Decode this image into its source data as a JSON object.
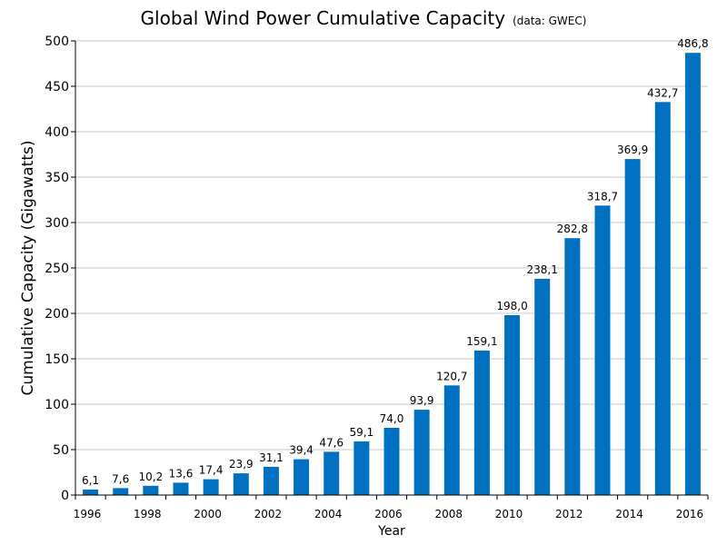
{
  "chart_data": {
    "type": "bar",
    "title": "Global Wind Power Cumulative Capacity",
    "subtitle": "(data: GWEC)",
    "xlabel": "Year",
    "ylabel": "Cumulative Capacity (Gigawatts)",
    "categories": [
      "1996",
      "1997",
      "1998",
      "1999",
      "2000",
      "2001",
      "2002",
      "2003",
      "2004",
      "2005",
      "2006",
      "2007",
      "2008",
      "2009",
      "2010",
      "2011",
      "2012",
      "2013",
      "2014",
      "2015",
      "2016"
    ],
    "values": [
      6.1,
      7.6,
      10.2,
      13.6,
      17.4,
      23.9,
      31.1,
      39.4,
      47.6,
      59.1,
      74.0,
      93.9,
      120.7,
      159.1,
      198.0,
      238.1,
      282.8,
      318.7,
      369.9,
      432.7,
      486.8
    ],
    "data_labels": [
      "6,1",
      "7,6",
      "10,2",
      "13,6",
      "17,4",
      "23,9",
      "31,1",
      "39,4",
      "47,6",
      "59,1",
      "74,0",
      "93,9",
      "120,7",
      "159,1",
      "198,0",
      "238,1",
      "282,8",
      "318,7",
      "369,9",
      "432,7",
      "486,8"
    ],
    "ylim": [
      0,
      500
    ],
    "yticks": [
      0,
      50,
      100,
      150,
      200,
      250,
      300,
      350,
      400,
      450,
      500
    ],
    "xtick_labels": [
      "1996",
      "1998",
      "2000",
      "2002",
      "2004",
      "2006",
      "2008",
      "2010",
      "2012",
      "2014",
      "2016"
    ],
    "bar_color": "#0070c0",
    "grid_color": "#c8c8c8",
    "grid": true,
    "legend": "none"
  }
}
